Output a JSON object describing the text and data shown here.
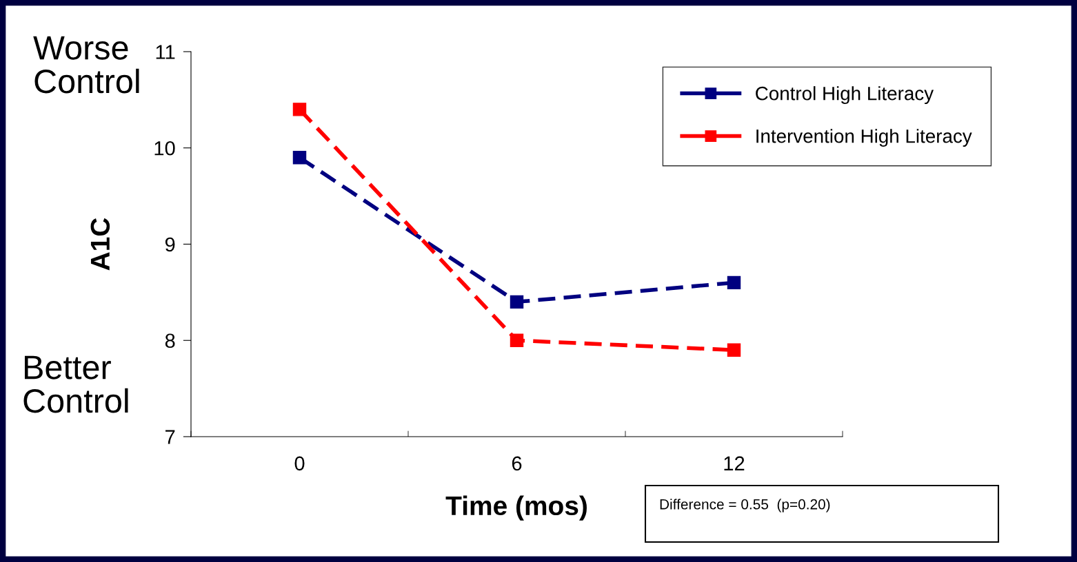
{
  "chart_data": {
    "type": "line",
    "xlabel": "Time (mos)",
    "ylabel": "A1C",
    "categories": [
      "0",
      "6",
      "12"
    ],
    "series": [
      {
        "name": "Control High Literacy",
        "color": "#000080",
        "values": [
          9.9,
          8.4,
          8.6
        ]
      },
      {
        "name": "Intervention High Literacy",
        "color": "#ff0000",
        "values": [
          10.4,
          8.0,
          7.9
        ]
      }
    ],
    "ylim": [
      7,
      11
    ],
    "yticks": [
      7,
      8,
      9,
      10,
      11
    ],
    "grid": false,
    "legend": "top right",
    "marker": "square",
    "line_style": "dashed",
    "annotations": [
      "Worse Control",
      "Better Control",
      "Difference = 0.55  (p=0.20)"
    ]
  }
}
